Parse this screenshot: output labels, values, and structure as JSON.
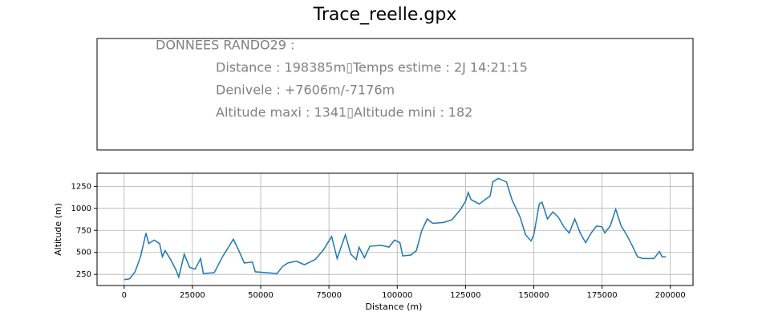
{
  "title": "Trace_reelle.gpx",
  "info_panel": {
    "heading": "DONNEES RANDO29  :",
    "lines": [
      "Distance : 198385m▯Temps estime : 2J 14:21:15",
      "Denivele : +7606m/-7176m",
      "Altitude maxi : 1341▯Altitude mini : 182"
    ]
  },
  "chart_data": {
    "type": "line",
    "xlabel": "Distance (m)",
    "ylabel": "Altitude (m)",
    "color": "#1f77b4",
    "grid": true,
    "xlim": [
      -9919,
      208304
    ],
    "ylim": [
      124,
      1399
    ],
    "xticks": [
      0,
      25000,
      50000,
      75000,
      100000,
      125000,
      150000,
      175000,
      200000
    ],
    "yticks": [
      250,
      500,
      750,
      1000,
      1250
    ],
    "x": [
      0,
      2000,
      4000,
      6000,
      8000,
      9000,
      11000,
      13000,
      14000,
      15000,
      17000,
      19000,
      20000,
      22000,
      24000,
      26000,
      28000,
      29000,
      33000,
      36000,
      38000,
      40000,
      42000,
      44000,
      47000,
      48000,
      52000,
      56000,
      58000,
      60000,
      63000,
      66000,
      70000,
      73000,
      76000,
      78000,
      81000,
      83000,
      85000,
      86000,
      88000,
      90000,
      94000,
      97000,
      99000,
      101000,
      102000,
      105000,
      107000,
      109000,
      111000,
      113000,
      117000,
      120000,
      123000,
      125000,
      126000,
      127000,
      130000,
      134000,
      135000,
      137000,
      140000,
      142000,
      145000,
      147000,
      149000,
      150000,
      152000,
      153000,
      155000,
      157000,
      159000,
      161000,
      163000,
      165000,
      167000,
      169000,
      171000,
      173000,
      175000,
      176000,
      178000,
      180000,
      182000,
      184000,
      186000,
      188000,
      190000,
      194000,
      196000,
      197000,
      198385
    ],
    "values": [
      190,
      200,
      280,
      450,
      720,
      600,
      640,
      600,
      450,
      520,
      420,
      300,
      220,
      480,
      330,
      310,
      430,
      260,
      270,
      450,
      550,
      650,
      520,
      380,
      390,
      280,
      270,
      260,
      340,
      380,
      400,
      360,
      420,
      530,
      680,
      430,
      700,
      480,
      420,
      560,
      440,
      570,
      580,
      560,
      640,
      610,
      460,
      470,
      520,
      750,
      880,
      830,
      840,
      870,
      980,
      1080,
      1180,
      1100,
      1050,
      1140,
      1300,
      1340,
      1300,
      1100,
      900,
      700,
      630,
      700,
      1050,
      1070,
      880,
      960,
      900,
      790,
      720,
      880,
      720,
      610,
      720,
      800,
      790,
      720,
      800,
      990,
      800,
      700,
      580,
      450,
      430,
      430,
      510,
      450,
      450
    ]
  }
}
